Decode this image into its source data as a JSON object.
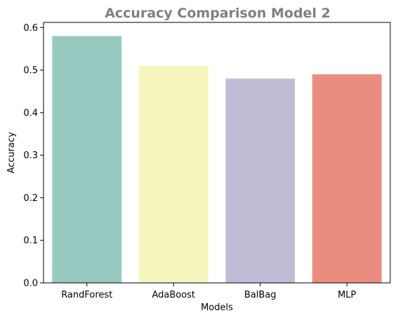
{
  "chart_data": {
    "type": "bar",
    "title": "Accuracy Comparison Model 2",
    "xlabel": "Models",
    "ylabel": "Accuracy",
    "categories": [
      "RandForest",
      "AdaBoost",
      "BalBag",
      "MLP"
    ],
    "values": [
      0.58,
      0.51,
      0.48,
      0.49
    ],
    "colors": [
      "#96cac1",
      "#f5f6bb",
      "#c0bcd6",
      "#eb8c80"
    ],
    "ylim": [
      0,
      0.612
    ],
    "yticks": [
      0.0,
      0.1,
      0.2,
      0.3,
      0.4,
      0.5,
      0.6
    ],
    "ytick_labels": [
      "0.0",
      "0.1",
      "0.2",
      "0.3",
      "0.4",
      "0.5",
      "0.6"
    ],
    "grid": false,
    "legend": "none"
  }
}
